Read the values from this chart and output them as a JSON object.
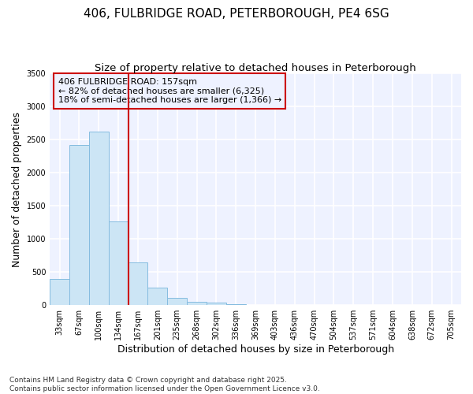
{
  "title_line1": "406, FULBRIDGE ROAD, PETERBOROUGH, PE4 6SG",
  "title_line2": "Size of property relative to detached houses in Peterborough",
  "xlabel": "Distribution of detached houses by size in Peterborough",
  "ylabel": "Number of detached properties",
  "bins": [
    "33sqm",
    "67sqm",
    "100sqm",
    "134sqm",
    "167sqm",
    "201sqm",
    "235sqm",
    "268sqm",
    "302sqm",
    "336sqm",
    "369sqm",
    "403sqm",
    "436sqm",
    "470sqm",
    "504sqm",
    "537sqm",
    "571sqm",
    "604sqm",
    "638sqm",
    "672sqm",
    "705sqm"
  ],
  "values": [
    390,
    2420,
    2620,
    1260,
    640,
    270,
    105,
    55,
    40,
    20,
    5,
    0,
    0,
    0,
    0,
    0,
    0,
    0,
    0,
    0,
    0
  ],
  "bar_color": "#cce5f5",
  "bar_edge_color": "#85bce0",
  "vline_color": "#cc0000",
  "vline_x_index": 4,
  "annotation_box_edge_color": "#cc0000",
  "annotation_text_line1": "406 FULBRIDGE ROAD: 157sqm",
  "annotation_text_line2": "← 82% of detached houses are smaller (6,325)",
  "annotation_text_line3": "18% of semi-detached houses are larger (1,366) →",
  "ylim": [
    0,
    3500
  ],
  "yticks": [
    0,
    500,
    1000,
    1500,
    2000,
    2500,
    3000,
    3500
  ],
  "footnote_line1": "Contains HM Land Registry data © Crown copyright and database right 2025.",
  "footnote_line2": "Contains public sector information licensed under the Open Government Licence v3.0.",
  "bg_color": "#ffffff",
  "plot_bg_color": "#eef2ff",
  "grid_color": "#ffffff",
  "title_fontsize": 11,
  "subtitle_fontsize": 9.5,
  "axis_label_fontsize": 9,
  "tick_fontsize": 7,
  "annotation_fontsize": 8,
  "footnote_fontsize": 6.5
}
